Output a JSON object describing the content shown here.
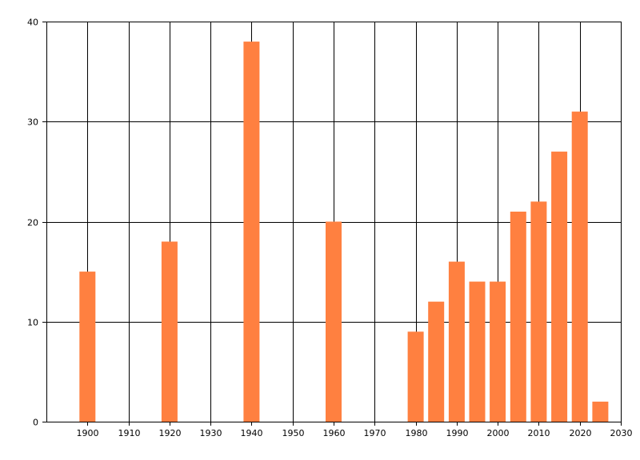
{
  "chart_data": {
    "type": "bar",
    "x": [
      1900,
      1920,
      1940,
      1960,
      1980,
      1985,
      1990,
      1995,
      2000,
      2005,
      2010,
      2015,
      2020,
      2025
    ],
    "values": [
      15,
      18,
      38,
      20,
      9,
      12,
      16,
      14,
      14,
      21,
      22,
      27,
      31,
      2
    ],
    "bar_color": "#FF8040",
    "xlim": [
      1890,
      2030
    ],
    "ylim": [
      0,
      40
    ],
    "x_ticks": [
      1900,
      1910,
      1920,
      1930,
      1940,
      1950,
      1960,
      1970,
      1980,
      1990,
      2000,
      2010,
      2020,
      2030
    ],
    "y_ticks": [
      0,
      10,
      20,
      30,
      40
    ],
    "grid": true,
    "title": "",
    "xlabel": "",
    "ylabel": ""
  }
}
